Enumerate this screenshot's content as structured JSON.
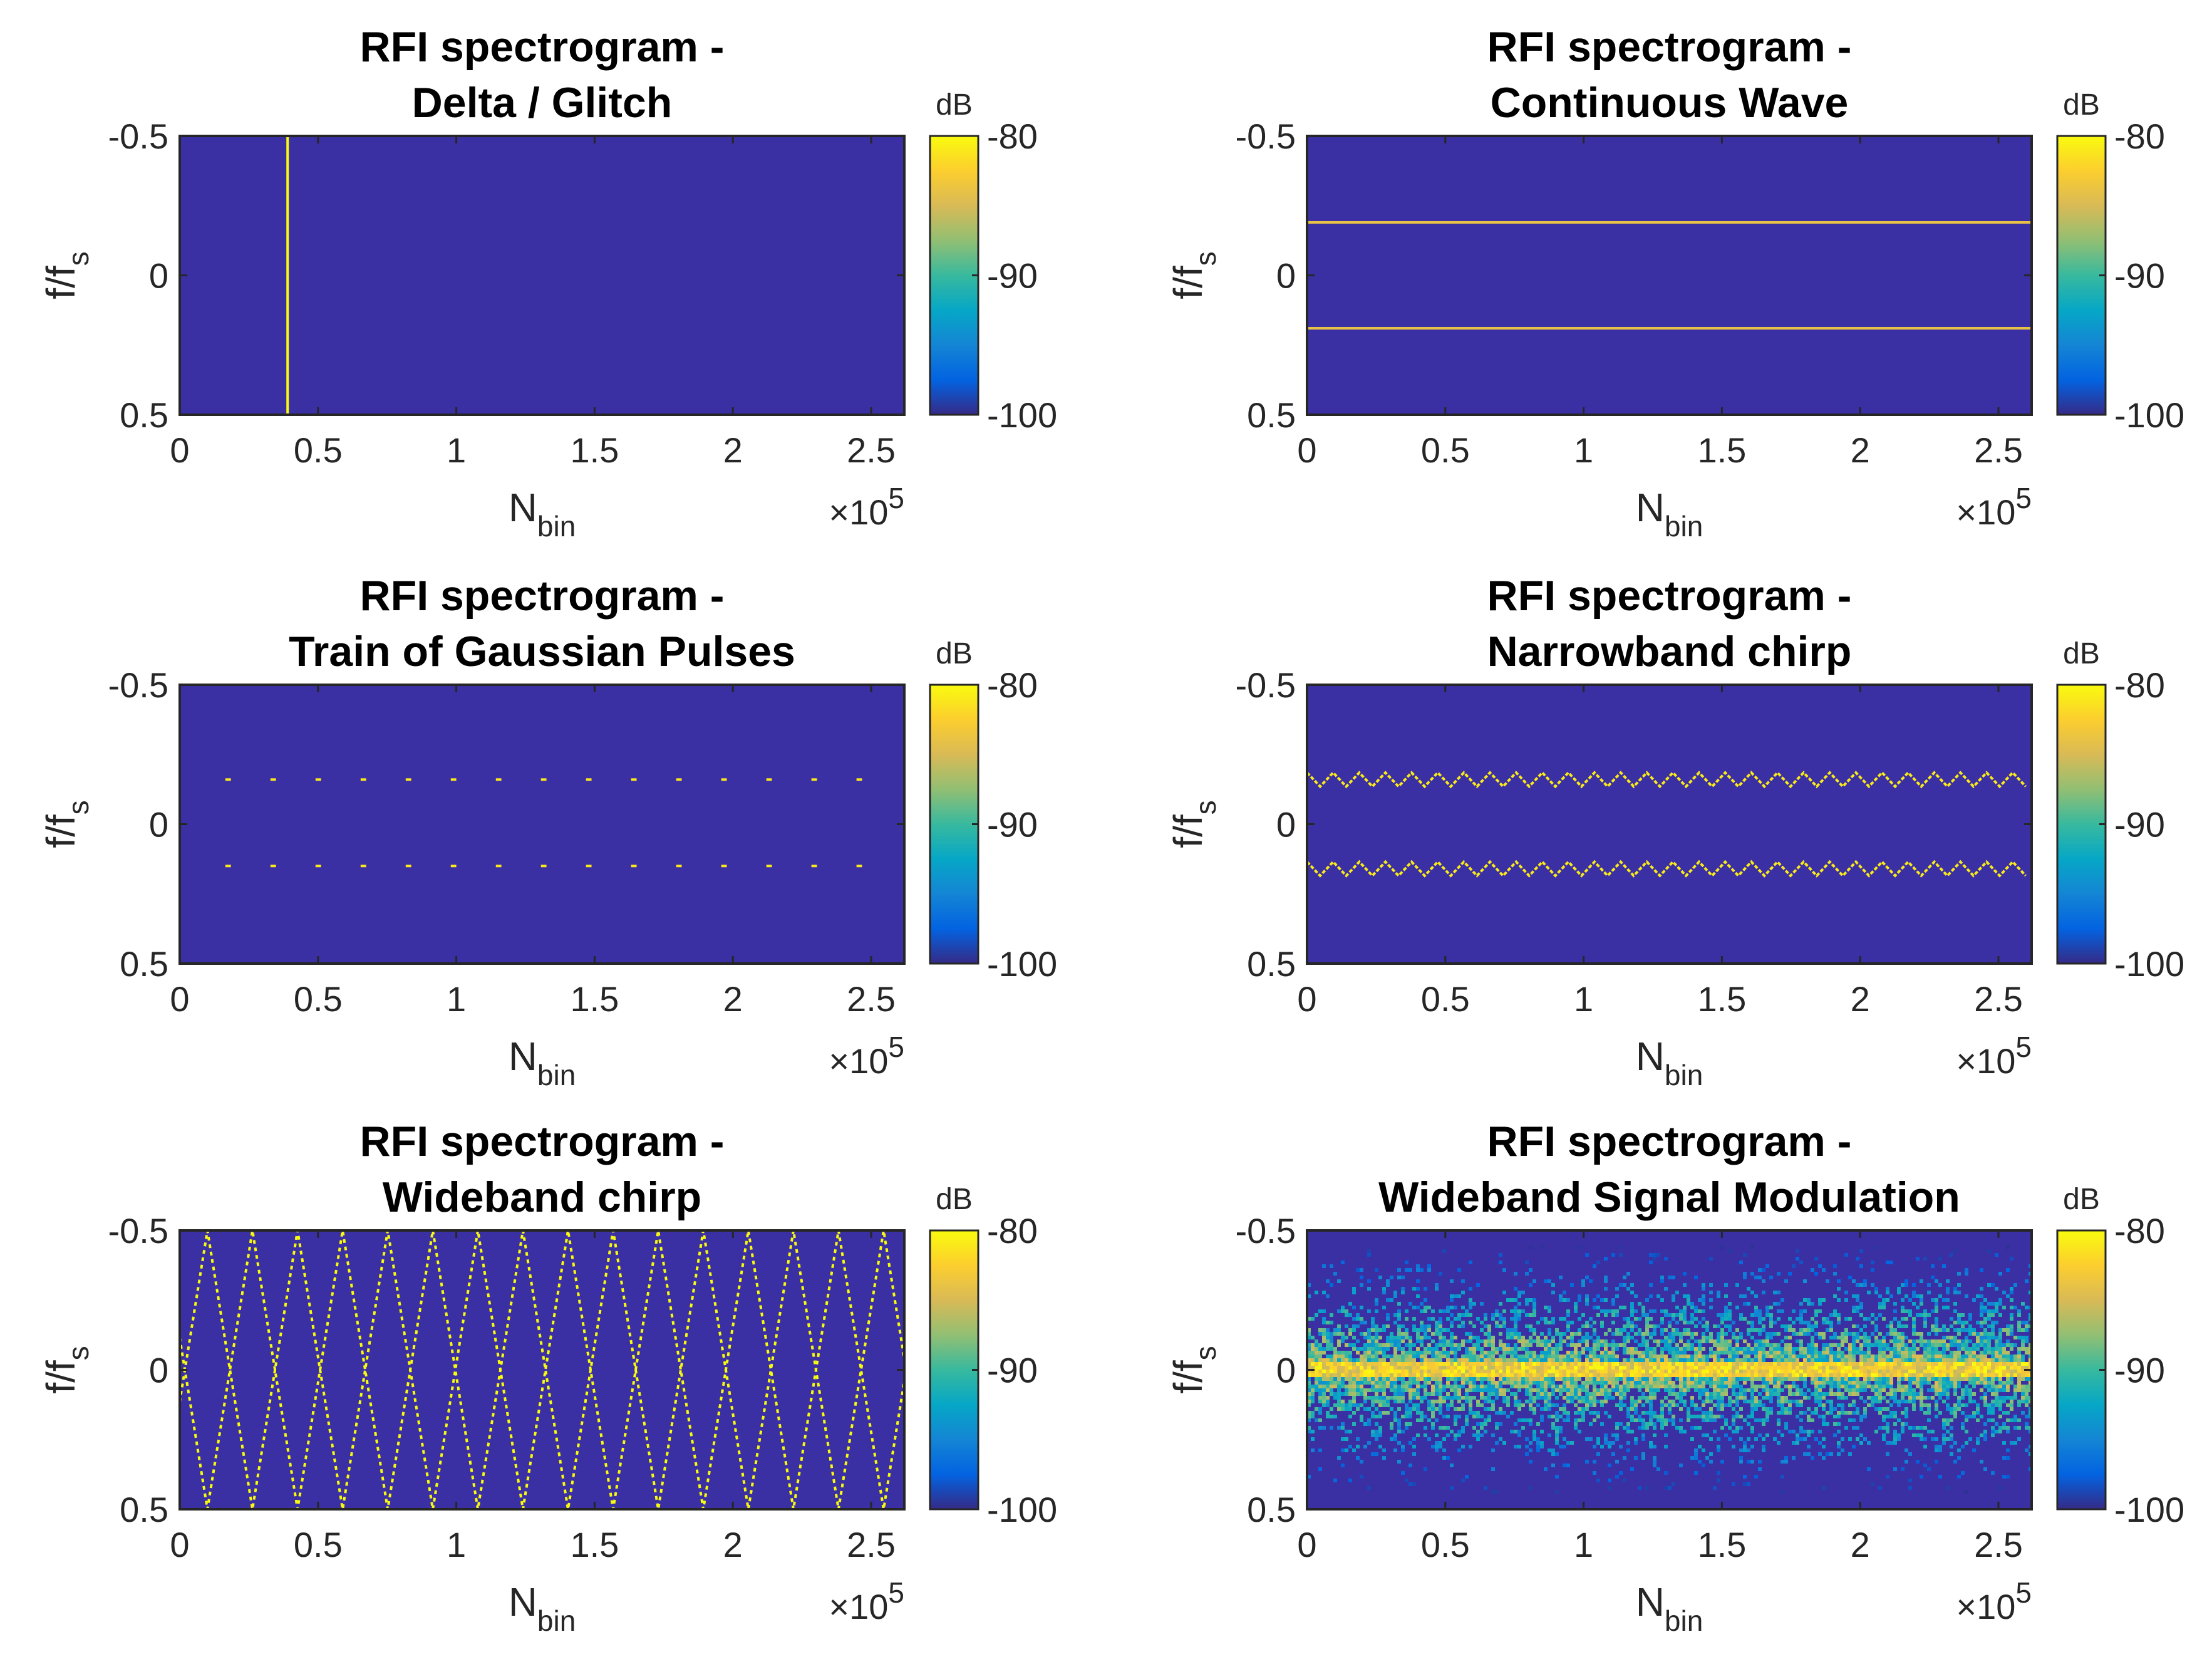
{
  "figure_title": "RFI spectrograms",
  "colors": {
    "background": "#3a2fa3",
    "axis": "#262626",
    "parula": [
      "#352a87",
      "#0363e1",
      "#1485d4",
      "#06a7c6",
      "#38b99e",
      "#92bf73",
      "#d9ba56",
      "#fcce2e",
      "#f9fb0e"
    ]
  },
  "chart_data": [
    {
      "type": "heatmap",
      "signal": "delta",
      "title": [
        "RFI spectrogram -",
        "Delta / Glitch"
      ],
      "xlabel": "N",
      "xlabel_sub": "bin",
      "ylabel": "f/f",
      "ylabel_sub": "s",
      "xlim": [
        0,
        2.62
      ],
      "ylim": [
        -0.5,
        0.5
      ],
      "y_reversed": true,
      "xticks": [
        0,
        0.5,
        1,
        1.5,
        2,
        2.5
      ],
      "xtick_labels": [
        "0",
        "0.5",
        "1",
        "1.5",
        "2",
        "2.5"
      ],
      "yticks": [
        -0.5,
        0,
        0.5
      ],
      "ytick_labels": [
        "-0.5",
        "0",
        "0.5"
      ],
      "x_exponent_base": "×10",
      "x_exponent_power": "5",
      "colorbar": {
        "label": "dB",
        "clim": [
          -100,
          -80
        ],
        "ticks": [
          -80,
          -90,
          -100
        ],
        "tick_labels": [
          "-80",
          "-90",
          "-100"
        ]
      },
      "features": [
        {
          "kind": "vertical_line",
          "x": 0.39,
          "level_db": -80
        }
      ]
    },
    {
      "type": "heatmap",
      "signal": "cw",
      "title": [
        "RFI spectrogram -",
        "Continuous Wave"
      ],
      "xlabel": "N",
      "xlabel_sub": "bin",
      "ylabel": "f/f",
      "ylabel_sub": "s",
      "xlim": [
        0,
        2.62
      ],
      "ylim": [
        -0.5,
        0.5
      ],
      "y_reversed": true,
      "xticks": [
        0,
        0.5,
        1,
        1.5,
        2,
        2.5
      ],
      "xtick_labels": [
        "0",
        "0.5",
        "1",
        "1.5",
        "2",
        "2.5"
      ],
      "yticks": [
        -0.5,
        0,
        0.5
      ],
      "ytick_labels": [
        "-0.5",
        "0",
        "0.5"
      ],
      "x_exponent_base": "×10",
      "x_exponent_power": "5",
      "colorbar": {
        "label": "dB",
        "clim": [
          -100,
          -80
        ],
        "ticks": [
          -80,
          -90,
          -100
        ],
        "tick_labels": [
          "-80",
          "-90",
          "-100"
        ]
      },
      "features": [
        {
          "kind": "horizontal_line",
          "y": -0.19,
          "level_db": -84
        },
        {
          "kind": "horizontal_line",
          "y": 0.19,
          "level_db": -84
        }
      ]
    },
    {
      "type": "heatmap",
      "signal": "gaussian_pulses",
      "title": [
        "RFI spectrogram -",
        "Train of Gaussian Pulses"
      ],
      "xlabel": "N",
      "xlabel_sub": "bin",
      "ylabel": "f/f",
      "ylabel_sub": "s",
      "xlim": [
        0,
        2.62
      ],
      "ylim": [
        -0.5,
        0.5
      ],
      "y_reversed": true,
      "xticks": [
        0,
        0.5,
        1,
        1.5,
        2,
        2.5
      ],
      "xtick_labels": [
        "0",
        "0.5",
        "1",
        "1.5",
        "2",
        "2.5"
      ],
      "yticks": [
        -0.5,
        0,
        0.5
      ],
      "ytick_labels": [
        "-0.5",
        "0",
        "0.5"
      ],
      "x_exponent_base": "×10",
      "x_exponent_power": "5",
      "colorbar": {
        "label": "dB",
        "clim": [
          -100,
          -80
        ],
        "ticks": [
          -80,
          -90,
          -100
        ],
        "tick_labels": [
          "-80",
          "-90",
          "-100"
        ]
      },
      "features": [
        {
          "kind": "pulse_train",
          "y": [
            -0.16,
            0.15
          ],
          "x_start": 0.165,
          "x_step": 0.163,
          "count": 15,
          "pulse_width": 0.02,
          "level_db": -81
        }
      ]
    },
    {
      "type": "heatmap",
      "signal": "narrowband_chirp",
      "title": [
        "RFI spectrogram -",
        "Narrowband chirp"
      ],
      "xlabel": "N",
      "xlabel_sub": "bin",
      "ylabel": "f/f",
      "ylabel_sub": "s",
      "xlim": [
        0,
        2.62
      ],
      "ylim": [
        -0.5,
        0.5
      ],
      "y_reversed": true,
      "xticks": [
        0,
        0.5,
        1,
        1.5,
        2,
        2.5
      ],
      "xtick_labels": [
        "0",
        "0.5",
        "1",
        "1.5",
        "2",
        "2.5"
      ],
      "yticks": [
        -0.5,
        0,
        0.5
      ],
      "ytick_labels": [
        "-0.5",
        "0",
        "0.5"
      ],
      "x_exponent_base": "×10",
      "x_exponent_power": "5",
      "colorbar": {
        "label": "dB",
        "clim": [
          -100,
          -80
        ],
        "ticks": [
          -80,
          -90,
          -100
        ],
        "tick_labels": [
          "-80",
          "-90",
          "-100"
        ]
      },
      "features": [
        {
          "kind": "triangle_sweep",
          "center": -0.16,
          "amplitude": 0.025,
          "period": 0.0945,
          "level_db": -81
        },
        {
          "kind": "triangle_sweep",
          "center": 0.16,
          "amplitude": 0.025,
          "period": 0.0945,
          "level_db": -81
        }
      ]
    },
    {
      "type": "heatmap",
      "signal": "wideband_chirp",
      "title": [
        "RFI spectrogram -",
        "Wideband chirp"
      ],
      "xlabel": "N",
      "xlabel_sub": "bin",
      "ylabel": "f/f",
      "ylabel_sub": "s",
      "xlim": [
        0,
        2.62
      ],
      "ylim": [
        -0.5,
        0.5
      ],
      "y_reversed": true,
      "xticks": [
        0,
        0.5,
        1,
        1.5,
        2,
        2.5
      ],
      "xtick_labels": [
        "0",
        "0.5",
        "1",
        "1.5",
        "2",
        "2.5"
      ],
      "yticks": [
        -0.5,
        0,
        0.5
      ],
      "ytick_labels": [
        "-0.5",
        "0",
        "0.5"
      ],
      "x_exponent_base": "×10",
      "x_exponent_power": "5",
      "colorbar": {
        "label": "dB",
        "clim": [
          -100,
          -80
        ],
        "ticks": [
          -80,
          -90,
          -100
        ],
        "tick_labels": [
          "-80",
          "-90",
          "-100"
        ]
      },
      "features": [
        {
          "kind": "full_band_sweep",
          "period": 0.326,
          "phase_offset": 0.1,
          "level_db": -80
        }
      ]
    },
    {
      "type": "heatmap",
      "signal": "wideband_modulation",
      "title": [
        "RFI spectrogram -",
        "Wideband Signal Modulation"
      ],
      "xlabel": "N",
      "xlabel_sub": "bin",
      "ylabel": "f/f",
      "ylabel_sub": "s",
      "xlim": [
        0,
        2.62
      ],
      "ylim": [
        -0.5,
        0.5
      ],
      "y_reversed": true,
      "xticks": [
        0,
        0.5,
        1,
        1.5,
        2,
        2.5
      ],
      "xtick_labels": [
        "0",
        "0.5",
        "1",
        "1.5",
        "2",
        "2.5"
      ],
      "yticks": [
        -0.5,
        0,
        0.5
      ],
      "ytick_labels": [
        "-0.5",
        "0",
        "0.5"
      ],
      "x_exponent_base": "×10",
      "x_exponent_power": "5",
      "colorbar": {
        "label": "dB",
        "clim": [
          -100,
          -80
        ],
        "ticks": [
          -80,
          -90,
          -100
        ],
        "tick_labels": [
          "-80",
          "-90",
          "-100"
        ]
      },
      "features": [
        {
          "kind": "noise_band",
          "center": 0.0,
          "core_halfwidth": 0.03,
          "sidelobe_halfwidth": 0.45,
          "peak_db": -80,
          "floor_db": -100
        }
      ]
    }
  ]
}
